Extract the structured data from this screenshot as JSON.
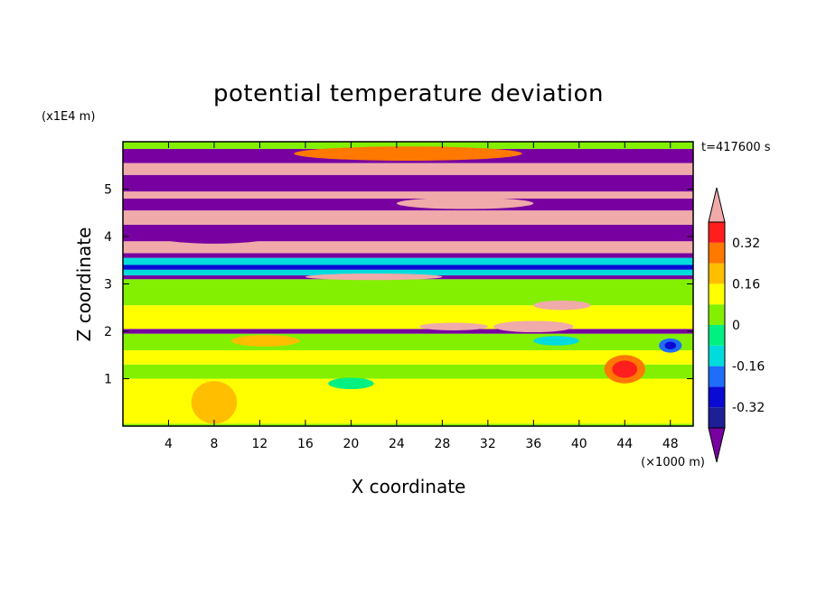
{
  "chart_data": {
    "type": "heatmap",
    "title": "potential temperature deviation",
    "xlabel": "X coordinate",
    "ylabel": "Z coordinate",
    "x_unit": "(×1000 m)",
    "y_unit": "(x1E4 m)",
    "time_label": "t=417600 s",
    "xlim": [
      0,
      50
    ],
    "ylim": [
      0,
      6
    ],
    "x_ticks": [
      4,
      8,
      12,
      16,
      20,
      24,
      28,
      32,
      36,
      40,
      44,
      48
    ],
    "y_ticks": [
      1,
      2,
      3,
      4,
      5
    ],
    "colorbar": {
      "levels": [
        -0.4,
        -0.32,
        -0.24,
        -0.16,
        -0.08,
        0,
        0.08,
        0.16,
        0.24,
        0.32,
        0.4
      ],
      "labels": [
        "0.32",
        "0.16",
        "0",
        "-0.16",
        "-0.32"
      ],
      "label_values": [
        0.32,
        0.16,
        0,
        -0.16,
        -0.32
      ],
      "colors_low_to_high": [
        "#1e1e96",
        "#0a0ad2",
        "#1e6efa",
        "#00dcdc",
        "#00f082",
        "#82f000",
        "#ffff00",
        "#ffbe00",
        "#ff7800",
        "#ff1e1e"
      ],
      "under_color": "#7800a0",
      "over_color": "#f0aaaa"
    },
    "bands": [
      {
        "z0": 0.0,
        "z1": 0.05,
        "value": 0.03
      },
      {
        "z0": 0.05,
        "z1": 1.0,
        "value": 0.09
      },
      {
        "z0": 1.0,
        "z1": 1.3,
        "value": 0.03
      },
      {
        "z0": 1.3,
        "z1": 1.6,
        "value": 0.09
      },
      {
        "z0": 1.6,
        "z1": 1.95,
        "value": 0.03
      },
      {
        "z0": 1.95,
        "z1": 2.05,
        "value": -0.45
      },
      {
        "z0": 2.05,
        "z1": 2.55,
        "value": 0.09
      },
      {
        "z0": 2.55,
        "z1": 3.1,
        "value": 0.03
      },
      {
        "z0": 3.1,
        "z1": 3.18,
        "value": -0.45
      },
      {
        "z0": 3.18,
        "z1": 3.3,
        "value": -0.1
      },
      {
        "z0": 3.3,
        "z1": 3.4,
        "value": -0.25
      },
      {
        "z0": 3.4,
        "z1": 3.55,
        "value": -0.1
      },
      {
        "z0": 3.55,
        "z1": 3.65,
        "value": -0.45
      },
      {
        "z0": 3.65,
        "z1": 3.9,
        "value": 0.45
      },
      {
        "z0": 3.9,
        "z1": 4.25,
        "value": -0.45
      },
      {
        "z0": 4.25,
        "z1": 4.55,
        "value": 0.45
      },
      {
        "z0": 4.55,
        "z1": 4.8,
        "value": -0.45
      },
      {
        "z0": 4.8,
        "z1": 4.95,
        "value": 0.45
      },
      {
        "z0": 4.95,
        "z1": 5.3,
        "value": -0.45
      },
      {
        "z0": 5.3,
        "z1": 5.55,
        "value": 0.45
      },
      {
        "z0": 5.55,
        "z1": 5.85,
        "value": -0.45
      },
      {
        "z0": 5.85,
        "z1": 6.0,
        "value": 0.03
      }
    ],
    "features": [
      {
        "x": 8.0,
        "z": 0.5,
        "rx": 2.0,
        "rz": 0.45,
        "value": 0.2
      },
      {
        "x": 12.5,
        "z": 1.8,
        "rx": 3.0,
        "rz": 0.12,
        "value": 0.2
      },
      {
        "x": 44.0,
        "z": 1.2,
        "rx": 1.8,
        "rz": 0.3,
        "value": 0.25
      },
      {
        "x": 44.0,
        "z": 1.2,
        "rx": 1.1,
        "rz": 0.18,
        "value": 0.35
      },
      {
        "x": 48.0,
        "z": 1.7,
        "rx": 1.0,
        "rz": 0.15,
        "value": -0.18
      },
      {
        "x": 48.0,
        "z": 1.7,
        "rx": 0.5,
        "rz": 0.08,
        "value": -0.3
      },
      {
        "x": 36.0,
        "z": 2.1,
        "rx": 3.5,
        "rz": 0.12,
        "value": 0.45
      },
      {
        "x": 29.0,
        "z": 2.1,
        "rx": 3.0,
        "rz": 0.08,
        "value": 0.45
      },
      {
        "x": 38.0,
        "z": 1.8,
        "rx": 2.0,
        "rz": 0.1,
        "value": -0.1
      },
      {
        "x": 38.5,
        "z": 2.55,
        "rx": 2.5,
        "rz": 0.1,
        "value": 0.45
      },
      {
        "x": 22.0,
        "z": 3.15,
        "rx": 6.0,
        "rz": 0.07,
        "value": 0.45
      },
      {
        "x": 25.0,
        "z": 5.75,
        "rx": 10.0,
        "rz": 0.15,
        "value": 0.25
      },
      {
        "x": 8.0,
        "z": 4.0,
        "rx": 5.0,
        "rz": 0.15,
        "value": -0.45
      },
      {
        "x": 30.0,
        "z": 4.7,
        "rx": 6.0,
        "rz": 0.12,
        "value": 0.45
      },
      {
        "x": 20.0,
        "z": 0.9,
        "rx": 2.0,
        "rz": 0.12,
        "value": -0.08
      }
    ]
  }
}
